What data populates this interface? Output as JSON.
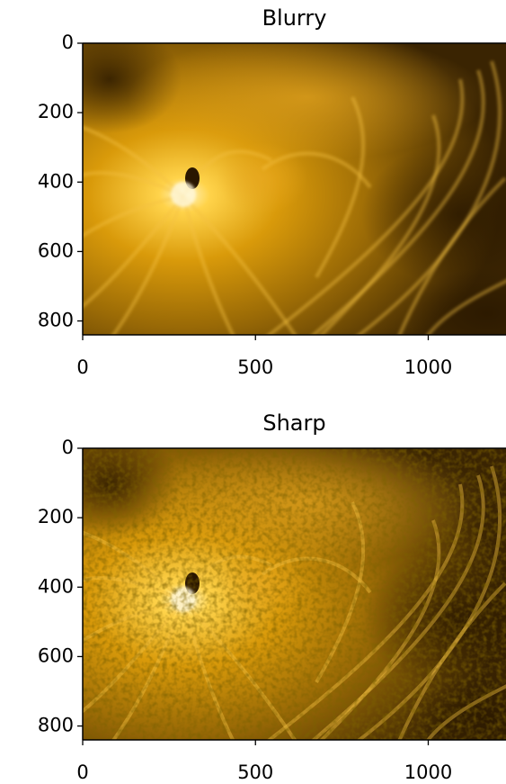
{
  "chart_data": [
    {
      "type": "image",
      "title": "Blurry",
      "xlim": [
        0,
        1225
      ],
      "ylim": [
        840,
        0
      ],
      "xticks": [
        0,
        500,
        1000
      ],
      "yticks": [
        0,
        200,
        400,
        600,
        800
      ]
    },
    {
      "type": "image",
      "title": "Sharp",
      "xlim": [
        0,
        1225
      ],
      "ylim": [
        840,
        0
      ],
      "xticks": [
        0,
        500,
        1000
      ],
      "yticks": [
        0,
        200,
        400,
        600,
        800
      ]
    }
  ]
}
